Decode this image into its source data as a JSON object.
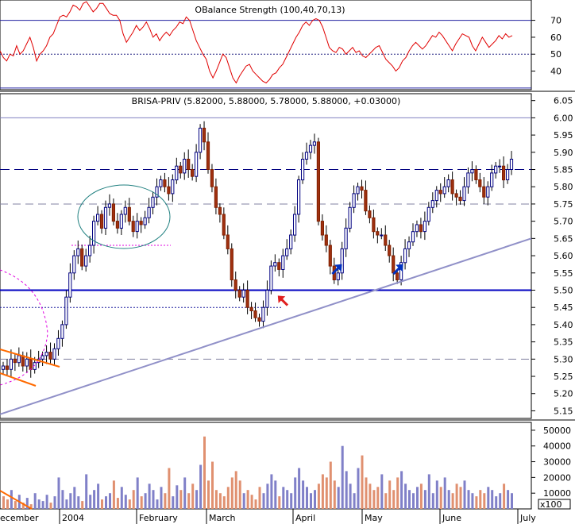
{
  "chart_data": [
    {
      "type": "line",
      "panel": "indicator",
      "title": "OBalance Strength (100,40,70,13)",
      "yticks": [
        40,
        50,
        60,
        70
      ],
      "ylim": [
        29,
        82
      ],
      "reference_lines": [
        {
          "y": 70,
          "style": "solid"
        },
        {
          "y": 50,
          "style": "dotted"
        },
        {
          "y": 30,
          "style": "solid"
        }
      ],
      "series": [
        {
          "values": [
            52,
            48,
            46,
            50,
            49,
            55,
            50,
            52,
            56,
            60,
            54,
            46,
            50,
            52,
            55,
            60,
            62,
            67,
            72,
            73,
            72,
            75,
            79,
            78,
            76,
            80,
            81,
            78,
            75,
            77,
            80,
            80,
            77,
            74,
            73,
            73,
            70,
            62,
            57,
            60,
            63,
            67,
            64,
            66,
            69,
            65,
            60,
            62,
            58,
            61,
            63,
            61,
            64,
            66,
            69,
            68,
            72,
            70,
            64,
            58,
            54,
            50,
            47,
            40,
            36,
            40,
            45,
            50,
            48,
            42,
            36,
            33,
            37,
            40,
            43,
            44,
            40,
            38,
            36,
            34,
            33,
            35,
            38,
            39,
            42,
            44,
            48,
            52,
            56,
            60,
            63,
            67,
            69,
            67,
            70,
            71,
            70,
            66,
            60,
            54,
            52,
            51,
            54,
            53,
            50,
            52,
            54,
            51,
            52,
            49,
            48,
            50,
            52,
            54,
            55,
            51,
            47,
            45,
            43,
            40,
            42,
            46,
            48,
            52,
            55,
            57,
            55,
            53,
            55,
            58,
            61,
            60,
            63,
            61,
            58,
            55,
            52,
            56,
            59,
            62,
            61,
            60,
            55,
            52,
            56,
            60,
            57,
            54,
            56,
            58,
            61,
            59,
            62,
            60,
            61
          ]
        }
      ]
    },
    {
      "type": "candlestick",
      "panel": "price",
      "title": "BRISA-PRIV (5.82000, 5.88000, 5.78000, 5.88000, +0.03000)",
      "yticks": [
        "5.15",
        "5.20",
        "5.25",
        "5.30",
        "5.35",
        "5.40",
        "5.45",
        "5.50",
        "5.55",
        "5.60",
        "5.65",
        "5.70",
        "5.75",
        "5.80",
        "5.85",
        "5.90",
        "5.95",
        "6.00",
        "6.05"
      ],
      "ylim": [
        5.128,
        6.07
      ],
      "x_labels": [
        "ecember",
        "2004",
        "February",
        "March",
        "April",
        "May",
        "June",
        "July"
      ],
      "horizontal_lines": [
        {
          "y": 6.0,
          "style": "solid",
          "color": "#8080c0"
        },
        {
          "y": 5.85,
          "style": "dashed",
          "color": "#000080"
        },
        {
          "y": 5.75,
          "style": "dashed",
          "color": "#8080a0"
        },
        {
          "y": 5.5,
          "style": "solid",
          "color": "#0000c0"
        },
        {
          "y": 5.3,
          "style": "dashed",
          "color": "#8080a0"
        }
      ],
      "trendline": {
        "from": [
          0,
          5.14
        ],
        "to": [
          169,
          5.65
        ]
      },
      "closes": [
        5.28,
        5.27,
        5.3,
        5.29,
        5.31,
        5.28,
        5.3,
        5.27,
        5.29,
        5.3,
        5.31,
        5.32,
        5.3,
        5.33,
        5.36,
        5.4,
        5.48,
        5.55,
        5.6,
        5.62,
        5.57,
        5.6,
        5.63,
        5.7,
        5.72,
        5.68,
        5.74,
        5.75,
        5.7,
        5.68,
        5.72,
        5.74,
        5.7,
        5.67,
        5.7,
        5.69,
        5.71,
        5.74,
        5.77,
        5.8,
        5.82,
        5.8,
        5.78,
        5.82,
        5.86,
        5.84,
        5.88,
        5.85,
        5.83,
        5.9,
        5.97,
        5.93,
        5.85,
        5.8,
        5.74,
        5.72,
        5.66,
        5.62,
        5.53,
        5.5,
        5.48,
        5.5,
        5.45,
        5.44,
        5.42,
        5.41,
        5.45,
        5.5,
        5.57,
        5.58,
        5.56,
        5.6,
        5.62,
        5.66,
        5.72,
        5.82,
        5.88,
        5.9,
        5.92,
        5.93,
        5.7,
        5.66,
        5.63,
        5.57,
        5.53,
        5.55,
        5.62,
        5.68,
        5.74,
        5.78,
        5.8,
        5.79,
        5.73,
        5.71,
        5.67,
        5.66,
        5.66,
        5.63,
        5.6,
        5.55,
        5.53,
        5.58,
        5.62,
        5.64,
        5.67,
        5.69,
        5.67,
        5.7,
        5.74,
        5.76,
        5.79,
        5.78,
        5.8,
        5.82,
        5.78,
        5.77,
        5.76,
        5.8,
        5.84,
        5.85,
        5.82,
        5.8,
        5.77,
        5.8,
        5.84,
        5.86,
        5.86,
        5.82,
        5.85,
        5.88
      ],
      "volume_panel": {
        "ylim": [
          0,
          55000
        ],
        "yticks": [
          10000,
          20000,
          30000,
          40000,
          50000
        ],
        "ytick_labels": [
          "10000",
          "20000",
          "30000",
          "40000",
          "50000"
        ],
        "unit_label": "x100"
      }
    }
  ]
}
